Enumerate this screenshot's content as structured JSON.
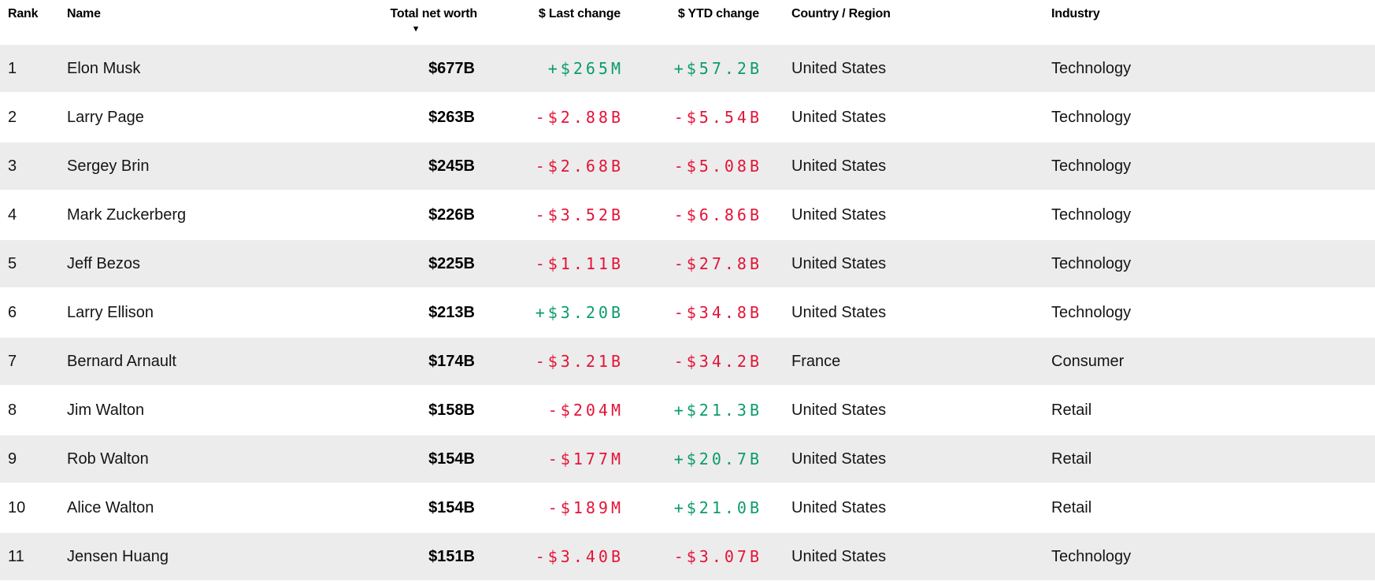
{
  "colors": {
    "positive": "#0b9b6d",
    "negative": "#e41338",
    "row_stripe": "#ececec",
    "header_text": "#000000",
    "body_text": "#151515"
  },
  "icons": {
    "sort_desc": "▼"
  },
  "table": {
    "columns": [
      {
        "key": "rank",
        "label": "Rank"
      },
      {
        "key": "name",
        "label": "Name"
      },
      {
        "key": "net_worth",
        "label": "Total net worth",
        "sorted": "descending"
      },
      {
        "key": "last_change",
        "label": "$ Last change"
      },
      {
        "key": "ytd_change",
        "label": "$ YTD change"
      },
      {
        "key": "country",
        "label": "Country / Region"
      },
      {
        "key": "industry",
        "label": "Industry"
      }
    ],
    "rows": [
      {
        "rank": "1",
        "name": "Elon Musk",
        "net_worth": "$677B",
        "last_change": "+$265M",
        "last_change_dir": "up",
        "ytd_change": "+$57.2B",
        "ytd_change_dir": "up",
        "country": "United States",
        "industry": "Technology"
      },
      {
        "rank": "2",
        "name": "Larry Page",
        "net_worth": "$263B",
        "last_change": "-$2.88B",
        "last_change_dir": "down",
        "ytd_change": "-$5.54B",
        "ytd_change_dir": "down",
        "country": "United States",
        "industry": "Technology"
      },
      {
        "rank": "3",
        "name": "Sergey Brin",
        "net_worth": "$245B",
        "last_change": "-$2.68B",
        "last_change_dir": "down",
        "ytd_change": "-$5.08B",
        "ytd_change_dir": "down",
        "country": "United States",
        "industry": "Technology"
      },
      {
        "rank": "4",
        "name": "Mark Zuckerberg",
        "net_worth": "$226B",
        "last_change": "-$3.52B",
        "last_change_dir": "down",
        "ytd_change": "-$6.86B",
        "ytd_change_dir": "down",
        "country": "United States",
        "industry": "Technology"
      },
      {
        "rank": "5",
        "name": "Jeff Bezos",
        "net_worth": "$225B",
        "last_change": "-$1.11B",
        "last_change_dir": "down",
        "ytd_change": "-$27.8B",
        "ytd_change_dir": "down",
        "country": "United States",
        "industry": "Technology"
      },
      {
        "rank": "6",
        "name": "Larry Ellison",
        "net_worth": "$213B",
        "last_change": "+$3.20B",
        "last_change_dir": "up",
        "ytd_change": "-$34.8B",
        "ytd_change_dir": "down",
        "country": "United States",
        "industry": "Technology"
      },
      {
        "rank": "7",
        "name": "Bernard Arnault",
        "net_worth": "$174B",
        "last_change": "-$3.21B",
        "last_change_dir": "down",
        "ytd_change": "-$34.2B",
        "ytd_change_dir": "down",
        "country": "France",
        "industry": "Consumer"
      },
      {
        "rank": "8",
        "name": "Jim Walton",
        "net_worth": "$158B",
        "last_change": "-$204M",
        "last_change_dir": "down",
        "ytd_change": "+$21.3B",
        "ytd_change_dir": "up",
        "country": "United States",
        "industry": "Retail"
      },
      {
        "rank": "9",
        "name": "Rob Walton",
        "net_worth": "$154B",
        "last_change": "-$177M",
        "last_change_dir": "down",
        "ytd_change": "+$20.7B",
        "ytd_change_dir": "up",
        "country": "United States",
        "industry": "Retail"
      },
      {
        "rank": "10",
        "name": "Alice Walton",
        "net_worth": "$154B",
        "last_change": "-$189M",
        "last_change_dir": "down",
        "ytd_change": "+$21.0B",
        "ytd_change_dir": "up",
        "country": "United States",
        "industry": "Retail"
      },
      {
        "rank": "11",
        "name": "Jensen Huang",
        "net_worth": "$151B",
        "last_change": "-$3.40B",
        "last_change_dir": "down",
        "ytd_change": "-$3.07B",
        "ytd_change_dir": "down",
        "country": "United States",
        "industry": "Technology"
      }
    ]
  }
}
